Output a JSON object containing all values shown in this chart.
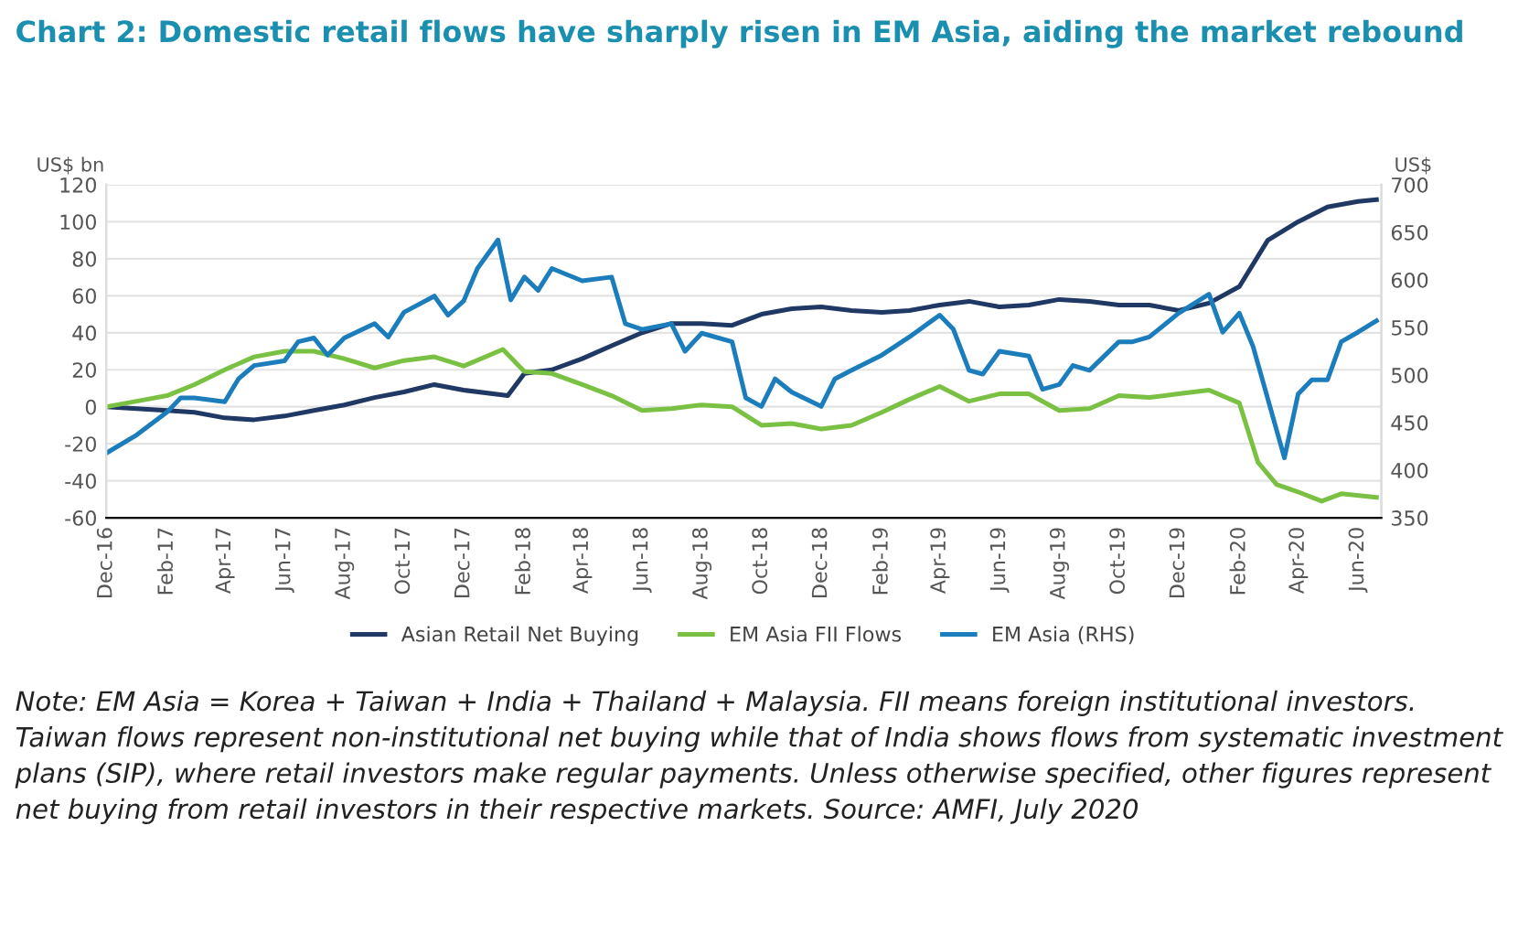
{
  "chart_data": {
    "type": "line",
    "title": "Chart 2: Domestic retail flows have sharply risen in EM Asia, aiding the market rebound",
    "ylabel": "US$ bn",
    "y2label": "US$",
    "xlim": [
      "2016-12-01",
      "2020-06-25"
    ],
    "xticks": [
      {
        "value": "2016-12-01",
        "label": "Dec-16"
      },
      {
        "value": "2017-02-01",
        "label": "Feb-17"
      },
      {
        "value": "2017-04-01",
        "label": "Apr-17"
      },
      {
        "value": "2017-06-01",
        "label": "Jun-17"
      },
      {
        "value": "2017-08-01",
        "label": "Aug-17"
      },
      {
        "value": "2017-10-01",
        "label": "Oct-17"
      },
      {
        "value": "2017-12-01",
        "label": "Dec-17"
      },
      {
        "value": "2018-02-01",
        "label": "Feb-18"
      },
      {
        "value": "2018-04-01",
        "label": "Apr-18"
      },
      {
        "value": "2018-06-01",
        "label": "Jun-18"
      },
      {
        "value": "2018-08-01",
        "label": "Aug-18"
      },
      {
        "value": "2018-10-01",
        "label": "Oct-18"
      },
      {
        "value": "2018-12-01",
        "label": "Dec-18"
      },
      {
        "value": "2019-02-01",
        "label": "Feb-19"
      },
      {
        "value": "2019-04-01",
        "label": "Apr-19"
      },
      {
        "value": "2019-06-01",
        "label": "Jun-19"
      },
      {
        "value": "2019-08-01",
        "label": "Aug-19"
      },
      {
        "value": "2019-10-01",
        "label": "Oct-19"
      },
      {
        "value": "2019-12-01",
        "label": "Dec-19"
      },
      {
        "value": "2020-02-01",
        "label": "Feb-20"
      },
      {
        "value": "2020-04-01",
        "label": "Apr-20"
      },
      {
        "value": "2020-06-01",
        "label": "Jun-20"
      }
    ],
    "ylim": [
      -60,
      120
    ],
    "yticks": [
      -60,
      -40,
      -20,
      0,
      20,
      40,
      60,
      80,
      100,
      120
    ],
    "y2lim": [
      350,
      700
    ],
    "y2ticks": [
      350,
      400,
      450,
      500,
      550,
      600,
      650,
      700
    ],
    "grid": "y",
    "legend": "bottom",
    "marker": "none",
    "line_style": "solid",
    "series": [
      {
        "name": "Asian Retail Net Buying",
        "color": "#1f3864",
        "x": [
          "2016-12-01",
          "2017-01-01",
          "2017-02-01",
          "2017-03-01",
          "2017-04-01",
          "2017-05-01",
          "2017-06-01",
          "2017-07-01",
          "2017-08-01",
          "2017-09-01",
          "2017-10-01",
          "2017-11-01",
          "2017-12-01",
          "2018-01-15",
          "2018-02-01",
          "2018-03-01",
          "2018-04-01",
          "2018-05-01",
          "2018-06-01",
          "2018-07-01",
          "2018-08-01",
          "2018-09-01",
          "2018-10-01",
          "2018-11-01",
          "2018-12-01",
          "2019-01-01",
          "2019-02-01",
          "2019-03-01",
          "2019-04-01",
          "2019-05-01",
          "2019-06-01",
          "2019-07-01",
          "2019-08-01",
          "2019-09-01",
          "2019-10-01",
          "2019-11-01",
          "2019-12-01",
          "2020-01-01",
          "2020-02-01",
          "2020-03-01",
          "2020-04-01",
          "2020-05-01",
          "2020-06-01",
          "2020-06-20"
        ],
        "values": [
          0,
          -1,
          -2,
          -3,
          -6,
          -7,
          -5,
          -2,
          1,
          5,
          8,
          12,
          9,
          6,
          18,
          20,
          26,
          33,
          40,
          45,
          45,
          44,
          50,
          53,
          54,
          52,
          51,
          52,
          55,
          57,
          54,
          55,
          58,
          57,
          55,
          55,
          52,
          56,
          65,
          90,
          100,
          108,
          111,
          112
        ]
      },
      {
        "name": "EM Asia FII Flows",
        "color": "#7ac143",
        "x": [
          "2016-12-01",
          "2017-01-01",
          "2017-02-01",
          "2017-03-01",
          "2017-04-01",
          "2017-05-01",
          "2017-06-01",
          "2017-07-01",
          "2017-08-01",
          "2017-09-01",
          "2017-10-01",
          "2017-11-01",
          "2017-12-01",
          "2018-01-10",
          "2018-02-01",
          "2018-03-01",
          "2018-04-01",
          "2018-05-01",
          "2018-06-01",
          "2018-07-01",
          "2018-08-01",
          "2018-09-01",
          "2018-10-01",
          "2018-11-01",
          "2018-12-01",
          "2019-01-01",
          "2019-02-01",
          "2019-03-01",
          "2019-04-01",
          "2019-05-01",
          "2019-06-01",
          "2019-07-01",
          "2019-08-01",
          "2019-09-01",
          "2019-10-01",
          "2019-11-01",
          "2019-12-01",
          "2020-01-01",
          "2020-02-01",
          "2020-02-20",
          "2020-03-10",
          "2020-04-01",
          "2020-04-25",
          "2020-05-15",
          "2020-06-20"
        ],
        "values": [
          0,
          3,
          6,
          12,
          20,
          27,
          30,
          30,
          26,
          21,
          25,
          27,
          22,
          31,
          19,
          18,
          12,
          6,
          -2,
          -1,
          1,
          0,
          -10,
          -9,
          -12,
          -10,
          -3,
          4,
          11,
          3,
          7,
          7,
          -2,
          -1,
          6,
          5,
          7,
          9,
          2,
          -30,
          -42,
          -46,
          -51,
          -47,
          -49
        ]
      },
      {
        "name": "EM Asia (RHS)",
        "color": "#1b7dbb",
        "axis": "y2",
        "x": [
          "2016-12-01",
          "2017-01-01",
          "2017-02-01",
          "2017-02-15",
          "2017-03-01",
          "2017-04-01",
          "2017-04-15",
          "2017-05-01",
          "2017-06-01",
          "2017-06-15",
          "2017-07-01",
          "2017-07-15",
          "2017-08-01",
          "2017-09-01",
          "2017-09-15",
          "2017-10-01",
          "2017-11-01",
          "2017-11-15",
          "2017-12-01",
          "2017-12-15",
          "2018-01-05",
          "2018-01-18",
          "2018-02-01",
          "2018-02-15",
          "2018-03-01",
          "2018-04-01",
          "2018-05-01",
          "2018-05-15",
          "2018-06-01",
          "2018-07-01",
          "2018-07-15",
          "2018-08-01",
          "2018-09-01",
          "2018-09-15",
          "2018-10-01",
          "2018-10-15",
          "2018-11-01",
          "2018-12-01",
          "2018-12-15",
          "2019-01-01",
          "2019-02-01",
          "2019-03-01",
          "2019-04-01",
          "2019-04-15",
          "2019-05-01",
          "2019-05-15",
          "2019-06-01",
          "2019-07-01",
          "2019-07-15",
          "2019-08-01",
          "2019-08-15",
          "2019-09-01",
          "2019-10-01",
          "2019-10-15",
          "2019-11-01",
          "2019-12-01",
          "2020-01-01",
          "2020-01-15",
          "2020-02-01",
          "2020-02-15",
          "2020-03-18",
          "2020-04-01",
          "2020-04-15",
          "2020-05-01",
          "2020-05-15",
          "2020-06-01",
          "2020-06-20"
        ],
        "values": [
          418,
          437,
          461,
          476,
          476,
          472,
          496,
          510,
          515,
          535,
          539,
          521,
          539,
          554,
          540,
          566,
          583,
          563,
          578,
          612,
          642,
          579,
          603,
          589,
          612,
          599,
          603,
          554,
          548,
          554,
          525,
          544,
          535,
          476,
          467,
          496,
          482,
          467,
          496,
          505,
          521,
          540,
          563,
          548,
          505,
          501,
          525,
          520,
          485,
          490,
          510,
          505,
          535,
          535,
          540,
          565,
          585,
          545,
          565,
          530,
          413,
          480,
          495,
          495,
          535,
          545,
          557
        ]
      }
    ],
    "annotations": [
      "Note: EM Asia = Korea + Taiwan + India + Thailand + Malaysia. FII means foreign institutional investors. Taiwan flows represent non-institutional net buying while that of India shows flows from systematic investment plans (SIP), where retail investors make regular payments. Unless otherwise specified, other figures represent net buying from retail investors in their respective markets. Source: AMFI, July 2020"
    ]
  }
}
